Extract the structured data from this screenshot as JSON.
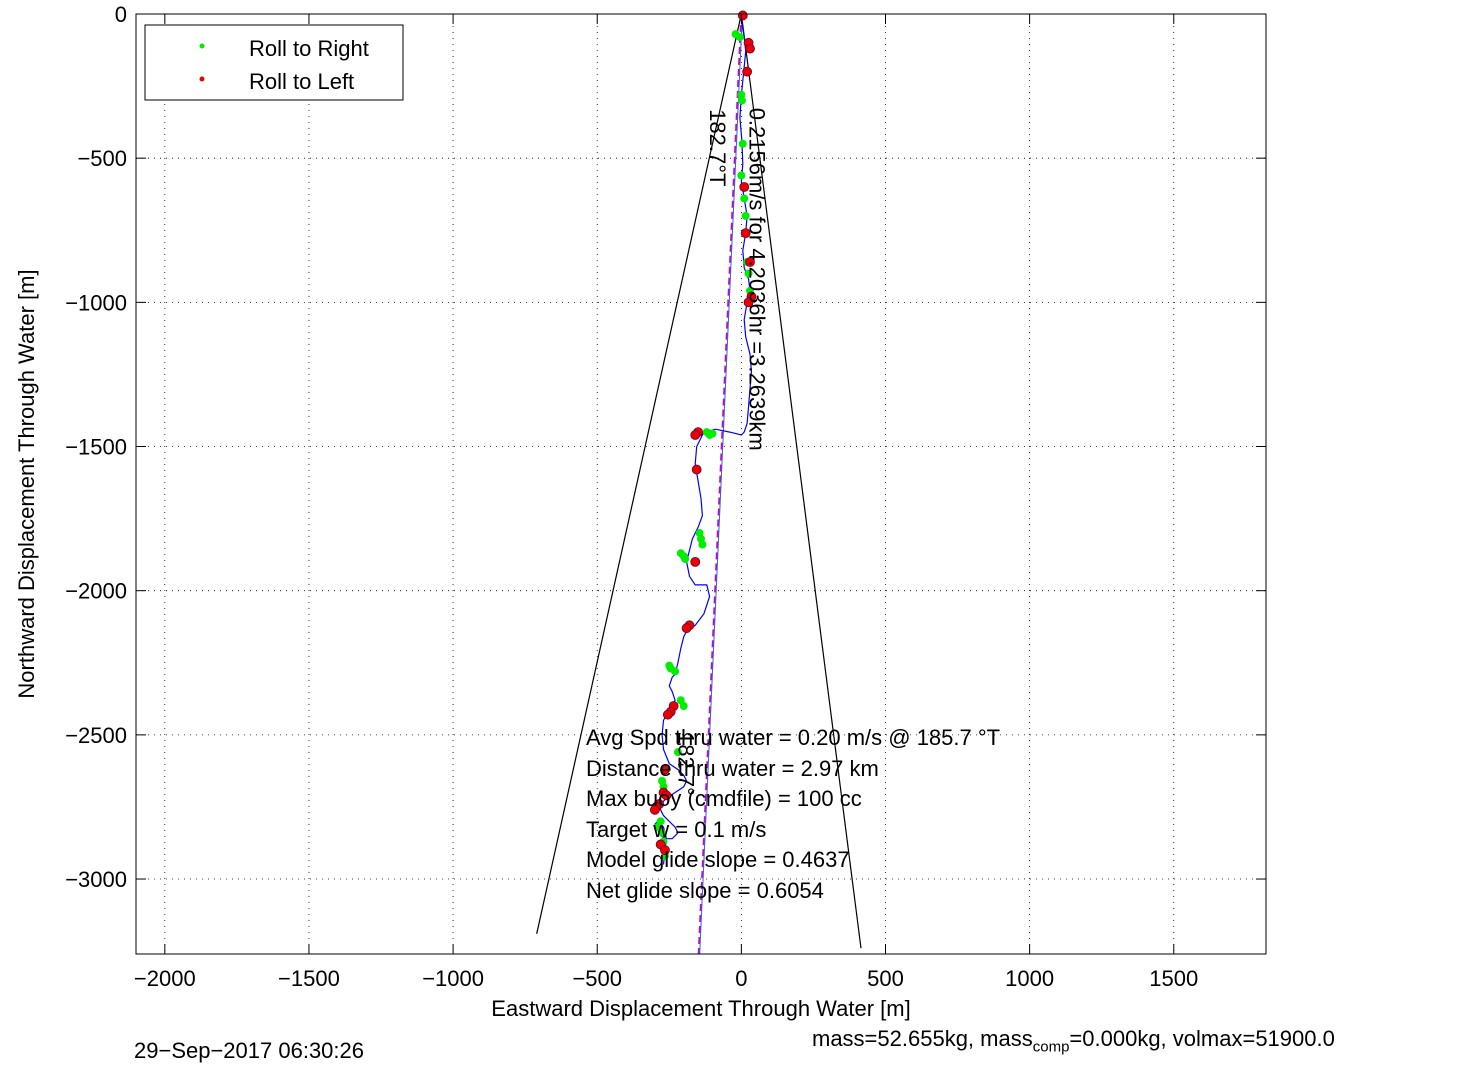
{
  "chart_data": {
    "type": "line",
    "title": "",
    "xlabel": "Eastward Displacement Through Water [m]",
    "ylabel": "Northward Displacement Through Water [m]",
    "xlim": [
      -2100,
      1820
    ],
    "ylim": [
      -3260,
      0
    ],
    "xticks": [
      -2000,
      -1500,
      -1000,
      -500,
      0,
      500,
      1000,
      1500
    ],
    "xtick_labels": [
      "−2000",
      "−1500",
      "−1000",
      "−500",
      "0",
      "500",
      "1000",
      "1500"
    ],
    "yticks": [
      0,
      -500,
      -1000,
      -1500,
      -2000,
      -2500,
      -3000
    ],
    "ytick_labels": [
      "0",
      "−500",
      "−1000",
      "−1500",
      "−2000",
      "−2500",
      "−3000"
    ],
    "grid": true,
    "legend": {
      "placement": "top-left",
      "entries": [
        {
          "label": "Roll to Right",
          "color": "#00ee00"
        },
        {
          "label": "Roll to Left",
          "color": "#ee0000"
        }
      ]
    },
    "track": {
      "color": "#0000ff",
      "x": [
        0,
        3,
        10,
        15,
        8,
        0,
        -5,
        2,
        5,
        0,
        10,
        20,
        15,
        5,
        10,
        25,
        30,
        20,
        10,
        15,
        30,
        35,
        30,
        25,
        20,
        10,
        0,
        -40,
        -90,
        -130,
        -155,
        -160,
        -150,
        -140,
        -135,
        -150,
        -170,
        -180,
        -190,
        -180,
        -160,
        -120,
        -110,
        -130,
        -160,
        -190,
        -200,
        -210,
        -220,
        -230,
        -240,
        -250,
        -240,
        -230,
        -250,
        -270,
        -275,
        -270,
        -250,
        -220,
        -200,
        -190,
        -200,
        -230,
        -260,
        -280,
        -280,
        -270,
        -250,
        -230,
        -220,
        -240,
        -260,
        -280,
        -290,
        -300,
        -290,
        -270,
        -260,
        -265,
        -270
      ],
      "y": [
        0,
        -40,
        -80,
        -130,
        -200,
        -280,
        -360,
        -440,
        -520,
        -580,
        -640,
        -700,
        -760,
        -820,
        -880,
        -920,
        -960,
        -1000,
        -1060,
        -1120,
        -1180,
        -1240,
        -1300,
        -1360,
        -1420,
        -1450,
        -1460,
        -1450,
        -1440,
        -1450,
        -1500,
        -1560,
        -1620,
        -1680,
        -1740,
        -1780,
        -1820,
        -1860,
        -1900,
        -1950,
        -1980,
        -1980,
        -2020,
        -2080,
        -2120,
        -2140,
        -2160,
        -2200,
        -2250,
        -2290,
        -2300,
        -2330,
        -2350,
        -2380,
        -2410,
        -2450,
        -2500,
        -2550,
        -2600,
        -2620,
        -2640,
        -2660,
        -2680,
        -2700,
        -2720,
        -2740,
        -2760,
        -2780,
        -2800,
        -2820,
        -2840,
        -2860,
        -2860,
        -2850,
        -2830,
        -2810,
        -2800,
        -2820,
        -2860,
        -2900,
        -2950
      ]
    },
    "roll_right": {
      "color": "#00ee00",
      "x": [
        -20,
        -5,
        0,
        2,
        5,
        0,
        10,
        15,
        20,
        25,
        30,
        -120,
        -110,
        -100,
        -145,
        -140,
        -135,
        -210,
        -200,
        -195,
        -250,
        -245,
        -230,
        -210,
        -200,
        -220,
        -260,
        -275,
        -270,
        -280,
        -290,
        -275,
        -270,
        -265
      ],
      "y": [
        -70,
        -80,
        -280,
        -300,
        -450,
        -560,
        -640,
        -700,
        -860,
        -900,
        -960,
        -1450,
        -1460,
        -1455,
        -1800,
        -1820,
        -1840,
        -1870,
        -1880,
        -1890,
        -2260,
        -2270,
        -2280,
        -2380,
        -2400,
        -2560,
        -2620,
        -2660,
        -2680,
        -2800,
        -2820,
        -2840,
        -2870,
        -2920
      ]
    },
    "roll_left": {
      "color": "#ee0000",
      "x": [
        5,
        25,
        30,
        20,
        10,
        15,
        30,
        35,
        25,
        -150,
        -160,
        -155,
        -160,
        -180,
        -190,
        -235,
        -245,
        -255,
        -265,
        -270,
        -260,
        -285,
        -295,
        -300,
        -280,
        -265
      ],
      "y": [
        -5,
        -100,
        -120,
        -200,
        -600,
        -760,
        -860,
        -980,
        -1000,
        -1450,
        -1460,
        -1580,
        -1900,
        -2120,
        -2130,
        -2400,
        -2420,
        -2430,
        -2620,
        -2700,
        -2710,
        -2740,
        -2750,
        -2760,
        -2880,
        -2900
      ]
    },
    "cone_lines": [
      {
        "x": [
          0,
          -710
        ],
        "y": [
          0,
          -3190
        ]
      },
      {
        "x": [
          0,
          415
        ],
        "y": [
          0,
          -3240
        ]
      }
    ],
    "heading_line": {
      "color": "#cc00cc",
      "x": [
        0,
        -148
      ],
      "y": [
        0,
        -3260
      ]
    },
    "annotations": [
      {
        "text": "0.2156m/s for 4.2036hr =3.2639km",
        "x": 28,
        "y": -325,
        "rotation": 90
      },
      {
        "text": "182.7°T",
        "x": -108,
        "y": -330,
        "rotation": 90
      },
      {
        "text": "182.7°",
        "x": -218,
        "y": -2490,
        "rotation": 90
      }
    ],
    "summary_lines": [
      "Avg Spd thru water =  0.20 m/s @ 185.7   °T",
      "Distance thru water =  2.97 km",
      "Max buoy (cmdfile) = 100 cc",
      "Target w = 0.1 m/s",
      "Model glide slope = 0.4637",
      "Net glide slope = 0.6054"
    ]
  },
  "footer": {
    "timestamp": "29−Sep−2017 06:30:26",
    "mass_prefix": "mass=52.655kg, mass",
    "mass_sub": "comp",
    "mass_suffix": "=0.000kg, volmax=51900.0"
  }
}
